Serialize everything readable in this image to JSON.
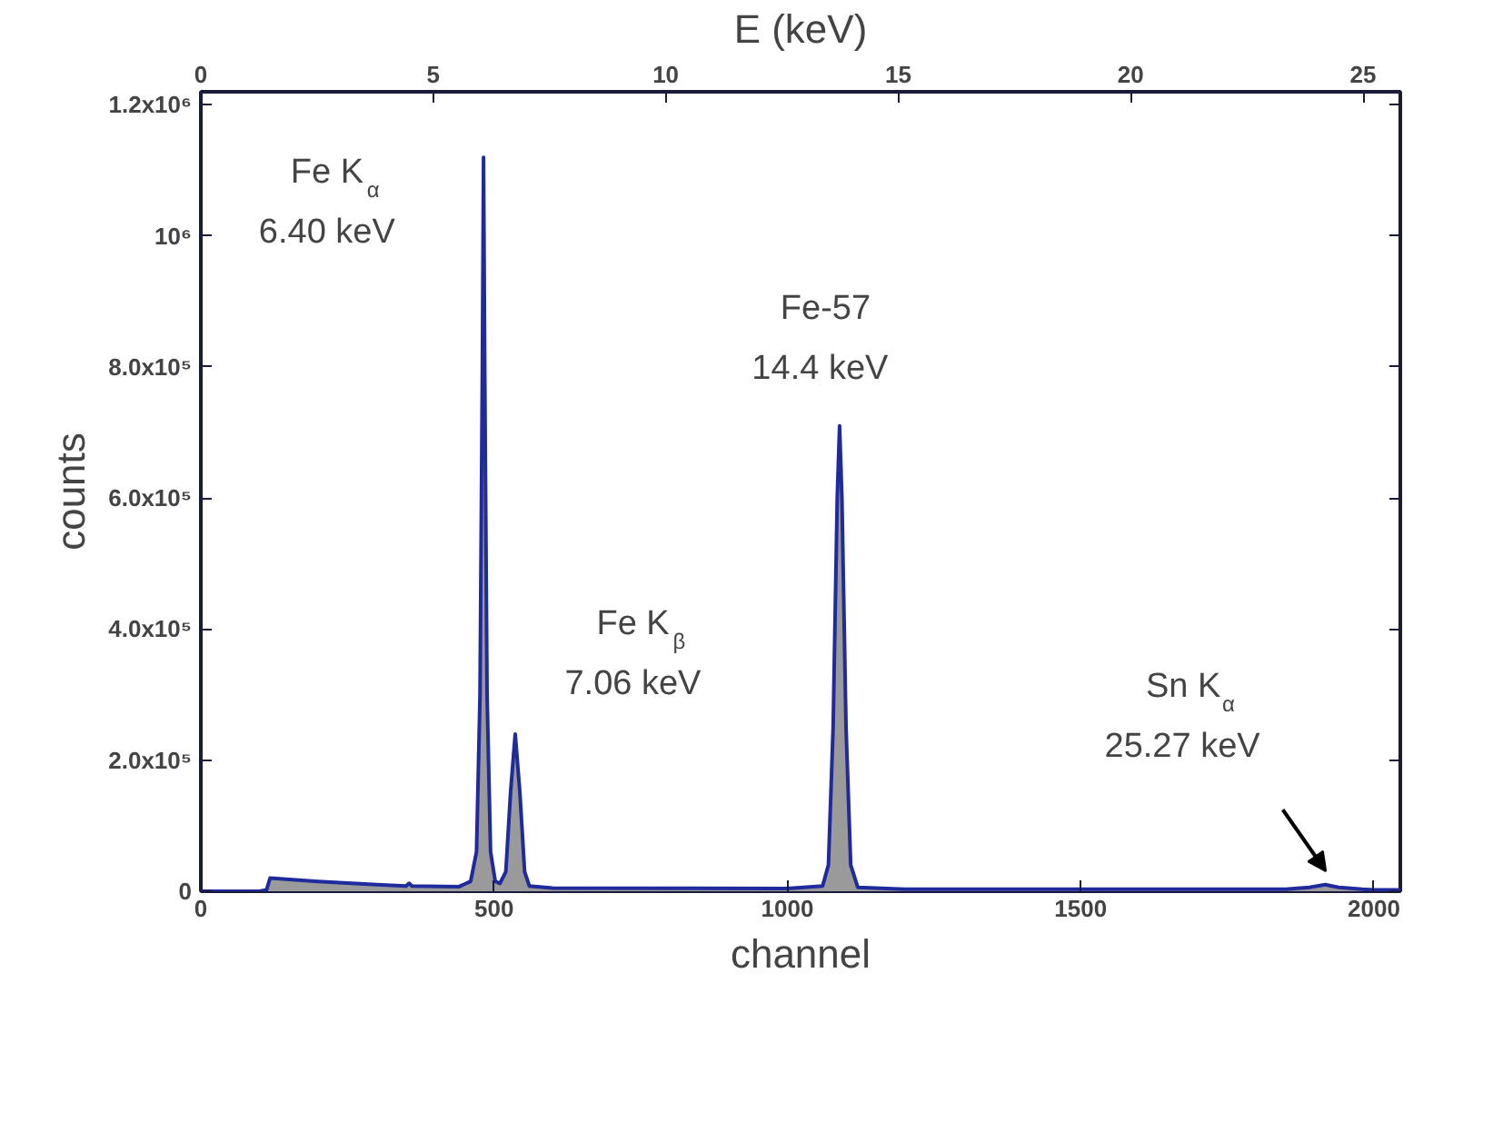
{
  "chart_data": {
    "type": "area",
    "xlabel": "channel",
    "ylabel": "counts",
    "x2label": "E (keV)",
    "xlim": [
      0,
      2045
    ],
    "xticks": [
      0,
      500,
      1000,
      1500,
      2000
    ],
    "x2lim": [
      0,
      25.8
    ],
    "x2ticks": [
      0,
      5,
      10,
      15,
      20,
      25
    ],
    "ylim": [
      0,
      1220000
    ],
    "yticks": [
      {
        "value": 0,
        "label": "0"
      },
      {
        "value": 200000,
        "label": "2.0x10⁵"
      },
      {
        "value": 400000,
        "label": "4.0x10⁵"
      },
      {
        "value": 600000,
        "label": "6.0x10⁵"
      },
      {
        "value": 800000,
        "label": "8.0x10⁵"
      },
      {
        "value": 1000000,
        "label": "10⁶"
      },
      {
        "value": 1200000,
        "label": "1.2x10⁶"
      }
    ],
    "grid": false,
    "series": [
      {
        "color": "#1f2a9c",
        "x": [
          0,
          100,
          112,
          118,
          200,
          300,
          350,
          355,
          360,
          440,
          460,
          470,
          476,
          480,
          482,
          484,
          488,
          494,
          502,
          510,
          520,
          528,
          536,
          544,
          552,
          560,
          600,
          1000,
          1060,
          1070,
          1078,
          1085,
          1089,
          1093,
          1100,
          1108,
          1120,
          1200,
          1850,
          1890,
          1917,
          1940,
          1980,
          2000,
          2045
        ],
        "values": [
          0,
          0,
          2000,
          20000,
          15000,
          10000,
          8000,
          12000,
          8000,
          7000,
          15000,
          60000,
          300000,
          800000,
          1120000,
          800000,
          300000,
          60000,
          15000,
          12000,
          30000,
          150000,
          240000,
          150000,
          30000,
          8000,
          5000,
          4000,
          8000,
          40000,
          250000,
          600000,
          710000,
          600000,
          250000,
          40000,
          6000,
          3000,
          3000,
          6000,
          10000,
          6000,
          3000,
          2000,
          2000
        ]
      }
    ],
    "annotations": [
      "Fe K$_{α}$\n6.40 keV",
      "Fe K$_{β}$\n7.06 keV",
      "Fe-57\n14.4 keV",
      "Sn K$_{α}$\n25.27 keV"
    ]
  }
}
